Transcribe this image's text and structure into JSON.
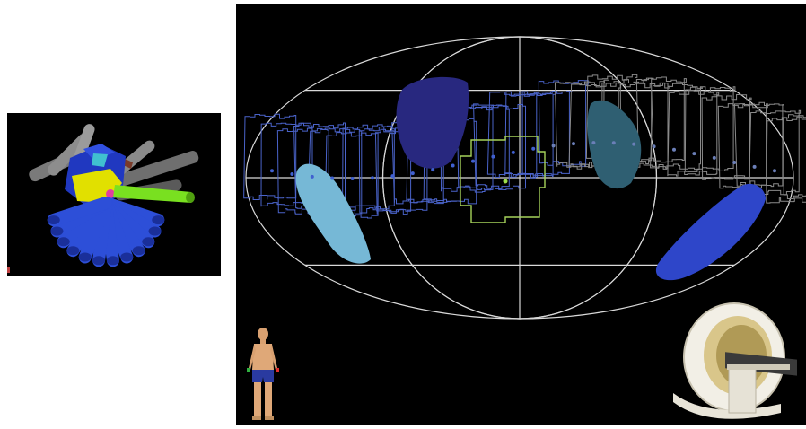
{
  "colors": {
    "page_background": "#ffffff",
    "panel_background": "#000000",
    "graticule": "#d9d9d9",
    "beam_outline": "#4a63c9",
    "beam_outline_gray": "#8a8a8a",
    "target_outline": "#a6d25a",
    "organ_dark_blue": "#28287f",
    "organ_teal": "#2f5f72",
    "organ_light_blue": "#76b8d6",
    "organ_blue": "#2e46c9",
    "beam_dot": "#4060d0",
    "target_dot": "#9fe04a"
  },
  "left_view": {
    "description_icon": "beam-arrangement-3d-icon",
    "gantry_beam_count": 12
  },
  "map": {
    "projection_icon": "hammer-aitoff-projection-icon",
    "organ_regions": [
      {
        "name": "organ-dark-blue",
        "color": "#28287f"
      },
      {
        "name": "organ-teal",
        "color": "#2f5f72"
      },
      {
        "name": "organ-light-blue",
        "color": "#76b8d6"
      },
      {
        "name": "organ-blue",
        "color": "#2e46c9"
      }
    ]
  },
  "icons": {
    "human_figure": "human-figure-icon",
    "linac": "linac-machine-icon"
  }
}
